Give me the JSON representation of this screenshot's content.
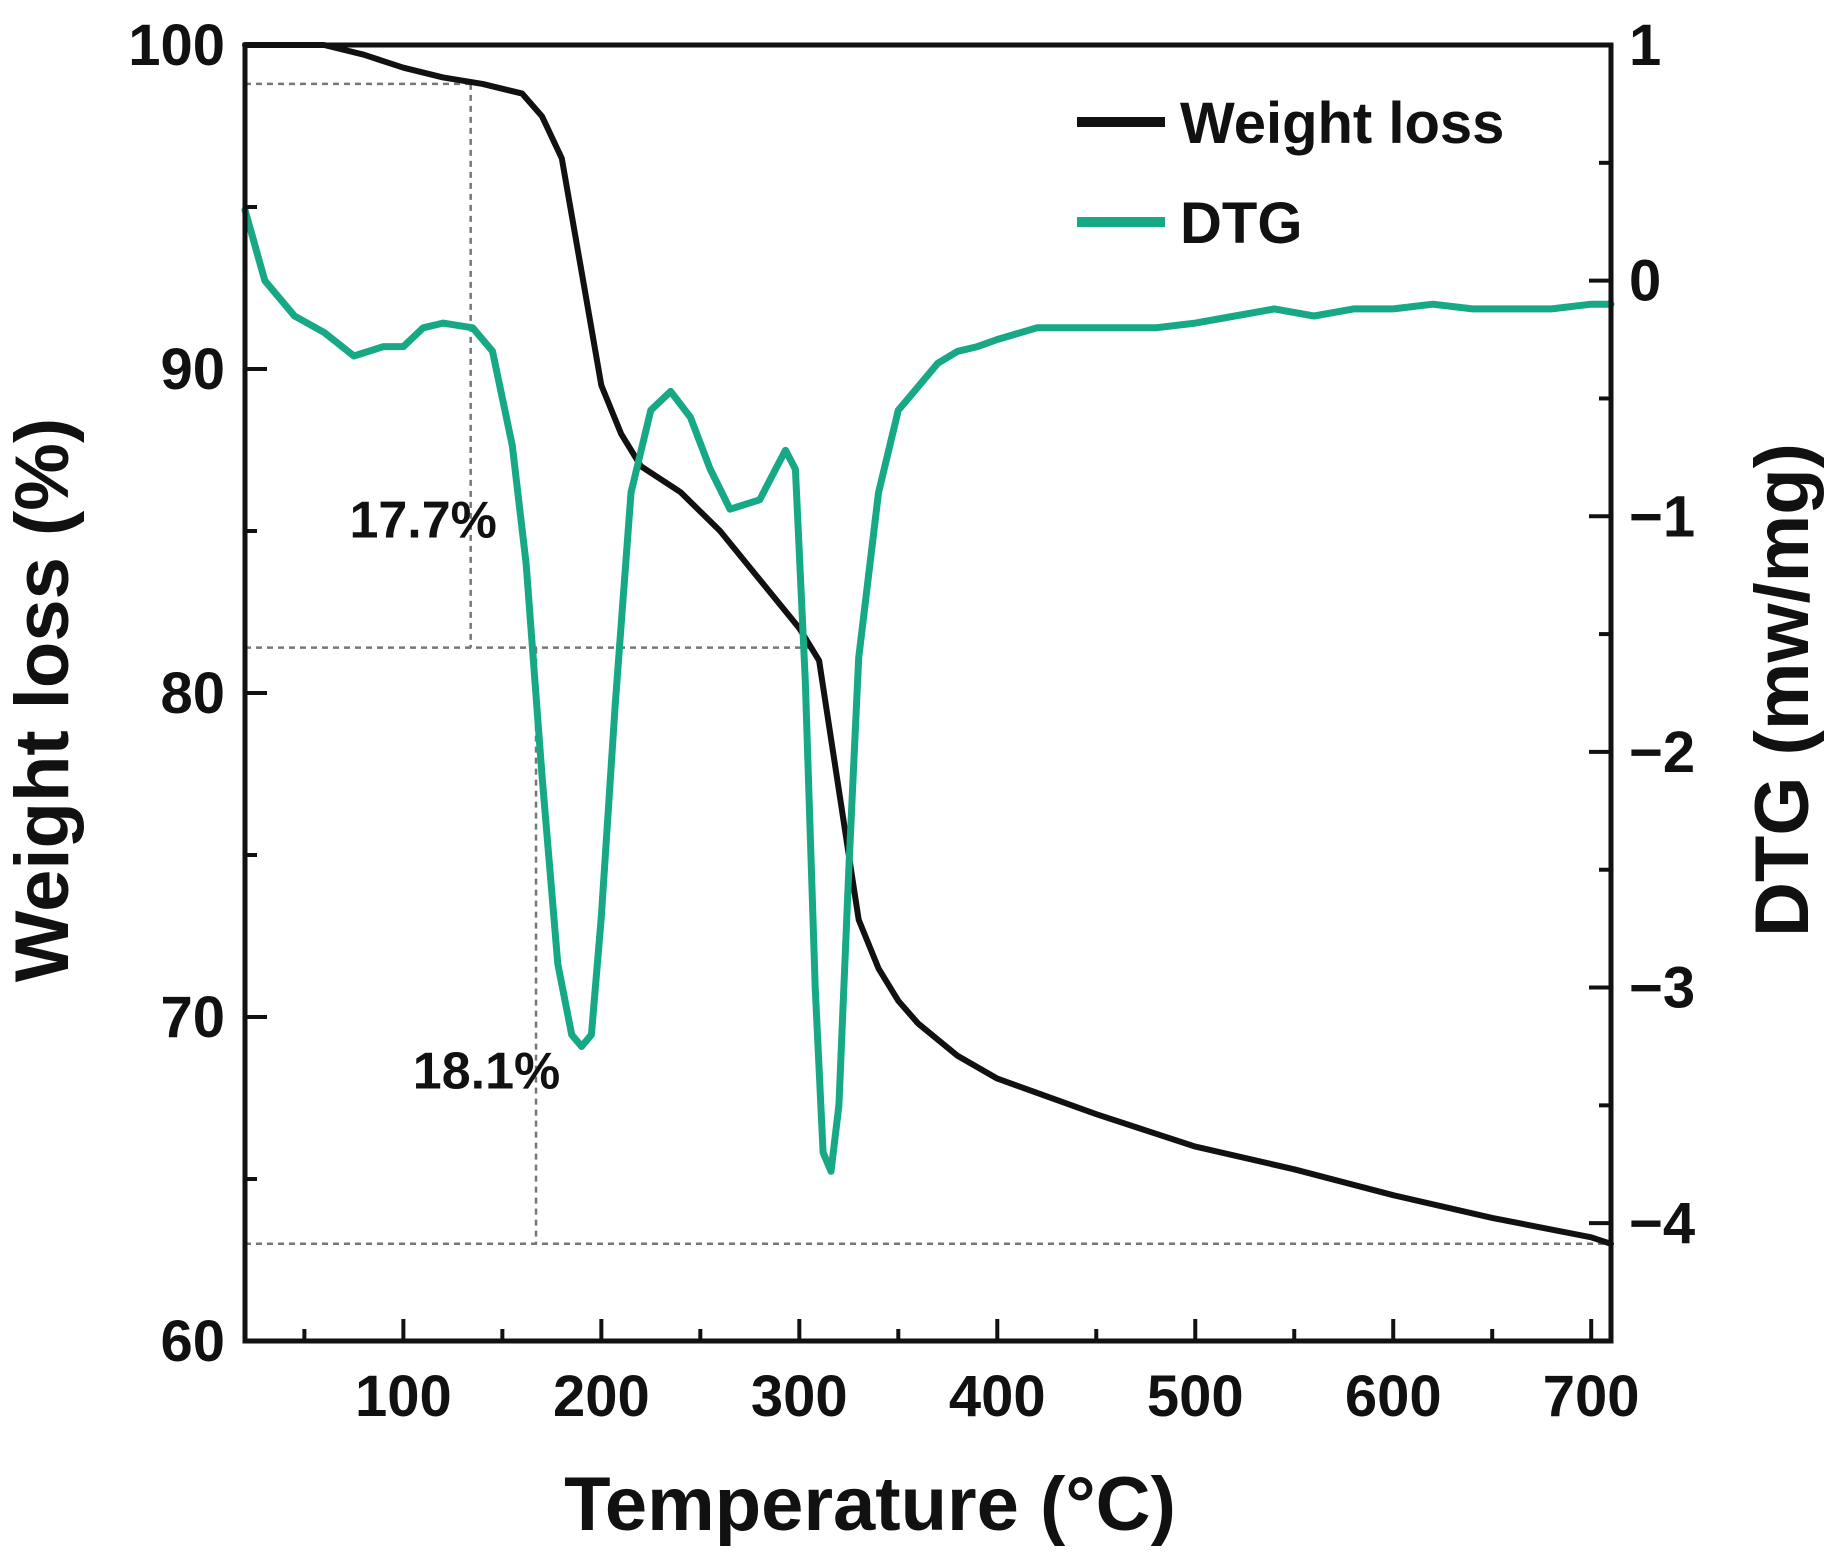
{
  "chart_data": {
    "type": "line",
    "xlabel": "Temperature (°C)",
    "ylabel_left": "Weight loss (%)",
    "ylabel_right": "DTG (mw/mg)",
    "xlim": [
      20,
      710
    ],
    "ylim_left": [
      60,
      100
    ],
    "ylim_right": [
      -4.5,
      1
    ],
    "x_ticks": [
      "100",
      "200",
      "300",
      "400",
      "500",
      "600",
      "700"
    ],
    "y_left_ticks": [
      "60",
      "70",
      "80",
      "90",
      "100"
    ],
    "y_right_ticks": [
      "1",
      "0",
      "−1",
      "−2",
      "−3",
      "−4"
    ],
    "legend_position": "top-right",
    "colors": {
      "weight": "#111111",
      "dtg": "#17a985"
    },
    "series": [
      {
        "name": "Weight loss",
        "axis": "left",
        "x": [
          20,
          40,
          60,
          80,
          100,
          120,
          140,
          160,
          170,
          180,
          190,
          200,
          210,
          220,
          240,
          260,
          280,
          300,
          305,
          310,
          320,
          330,
          340,
          350,
          360,
          380,
          400,
          450,
          500,
          550,
          600,
          650,
          700,
          710
        ],
        "y": [
          100,
          100,
          100,
          99.7,
          99.3,
          99.0,
          98.8,
          98.5,
          97.8,
          96.5,
          93,
          89.5,
          88,
          87,
          86.2,
          85,
          83.5,
          82,
          81.5,
          81,
          77,
          73,
          71.5,
          70.5,
          69.8,
          68.8,
          68.1,
          67,
          66,
          65.3,
          64.5,
          63.8,
          63.2,
          63
        ]
      },
      {
        "name": "DTG",
        "axis": "right",
        "x": [
          20,
          30,
          45,
          60,
          75,
          90,
          100,
          110,
          120,
          135,
          145,
          155,
          162,
          170,
          178,
          185,
          190,
          195,
          200,
          207,
          215,
          225,
          235,
          245,
          255,
          265,
          280,
          288,
          293,
          298,
          303,
          308,
          312,
          316,
          320,
          325,
          330,
          340,
          350,
          360,
          370,
          380,
          390,
          400,
          420,
          450,
          480,
          500,
          520,
          540,
          560,
          580,
          600,
          620,
          640,
          660,
          680,
          700,
          710
        ],
        "y": [
          0.3,
          0.0,
          -0.15,
          -0.22,
          -0.32,
          -0.28,
          -0.28,
          -0.2,
          -0.18,
          -0.2,
          -0.3,
          -0.7,
          -1.2,
          -2.1,
          -2.9,
          -3.2,
          -3.25,
          -3.2,
          -2.7,
          -1.8,
          -0.9,
          -0.55,
          -0.47,
          -0.58,
          -0.8,
          -0.97,
          -0.93,
          -0.8,
          -0.72,
          -0.8,
          -1.7,
          -3.0,
          -3.7,
          -3.78,
          -3.5,
          -2.5,
          -1.6,
          -0.9,
          -0.55,
          -0.45,
          -0.35,
          -0.3,
          -0.28,
          -0.25,
          -0.2,
          -0.2,
          -0.2,
          -0.18,
          -0.15,
          -0.12,
          -0.15,
          -0.12,
          -0.12,
          -0.1,
          -0.12,
          -0.12,
          -0.12,
          -0.1,
          -0.1
        ]
      }
    ],
    "annotations": [
      {
        "text": "17.7%",
        "x": 110,
        "y": 84.8
      },
      {
        "text": "18.1%",
        "x": 142,
        "y": 67.8
      }
    ],
    "guides": [
      {
        "x1": 20,
        "y1": 98.8,
        "x2": 134,
        "y2": 98.8
      },
      {
        "x1": 134,
        "y1": 98.8,
        "x2": 134,
        "y2": 81.4
      },
      {
        "x1": 20,
        "y1": 81.4,
        "x2": 306,
        "y2": 81.4
      },
      {
        "x1": 167,
        "y1": 81.4,
        "x2": 167,
        "y2": 63.0
      },
      {
        "x1": 20,
        "y1": 63.0,
        "x2": 710,
        "y2": 63.0
      }
    ]
  }
}
